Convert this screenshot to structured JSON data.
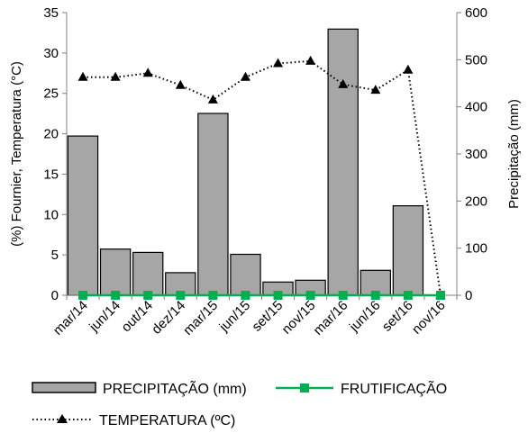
{
  "chart_data": {
    "type": "bar",
    "categories": [
      "mar/14",
      "jun/14",
      "out/14",
      "dez/14",
      "mar/15",
      "jun/15",
      "set/15",
      "nov/15",
      "mar/16",
      "jun/16",
      "set/16",
      "nov/16"
    ],
    "y_left": {
      "label": "(%) Fournier, Temperatura (°C)",
      "range": [
        0,
        35
      ],
      "ticks": [
        0,
        5,
        10,
        15,
        20,
        25,
        30,
        35
      ]
    },
    "y_right": {
      "label": "Precipitação (mm)",
      "range": [
        0,
        600
      ],
      "ticks": [
        0,
        100,
        200,
        300,
        400,
        500,
        600
      ]
    },
    "series": [
      {
        "name": "PRECIPITAÇÃO (mm)",
        "type": "bar",
        "axis": "right",
        "color": "#a6a6a6",
        "values": [
          338,
          98,
          91,
          48,
          386,
          87,
          28,
          32,
          565,
          53,
          190,
          0
        ]
      },
      {
        "name": "FRUTIFICAÇÃO",
        "type": "line",
        "axis": "left",
        "color": "#00b050",
        "marker": "square",
        "values": [
          0,
          0,
          0,
          0,
          0,
          0,
          0,
          0,
          0,
          0,
          0,
          0
        ]
      },
      {
        "name": "TEMPERATURA (ºC)",
        "type": "line",
        "axis": "left",
        "color": "#000000",
        "style": "dotted",
        "marker": "triangle",
        "values": [
          27.0,
          27.0,
          27.5,
          26.0,
          24.2,
          27.0,
          28.7,
          29.0,
          26.1,
          25.4,
          27.9,
          0
        ]
      }
    ],
    "legend": {
      "position": "bottom",
      "items": [
        {
          "label": "PRECIPITAÇÃO (mm)",
          "kind": "bar"
        },
        {
          "label": "FRUTIFICAÇÃO",
          "kind": "green-line"
        },
        {
          "label": "TEMPERATURA (ºC)",
          "kind": "dotted-line"
        }
      ]
    }
  }
}
